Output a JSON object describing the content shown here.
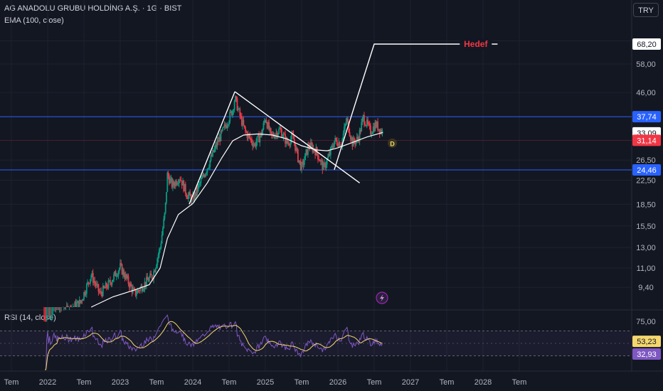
{
  "header": {
    "title": "AG ANADOLU GRUBU HOLDİNG A.Ş. · 1G · BIST",
    "ema_label": "EMA (100, close)",
    "currency_button": "TRY"
  },
  "rsi": {
    "label": "RSI (14, close)",
    "ticks": [
      "75,00"
    ],
    "value_labels": [
      {
        "text": "53,23",
        "value": 53.23,
        "color": "#f5d76e"
      },
      {
        "text": "32,93",
        "value": 32.93,
        "color": "#7e57c2"
      }
    ],
    "upper_band": 70,
    "lower_band": 30
  },
  "chart_data": {
    "type": "candlestick",
    "symbol": "AG ANADOLU GRUBU HOLDİNG A.Ş.",
    "interval": "1G",
    "exchange": "BIST",
    "scale": "log",
    "x_ticks": [
      "Tem",
      "2022",
      "Tem",
      "2023",
      "Tem",
      "2024",
      "Tem",
      "2025",
      "Tem",
      "2026",
      "Tem",
      "2027",
      "Tem",
      "2028",
      "Tem"
    ],
    "y_ticks": [
      "70,00",
      "58,00",
      "46,00",
      "26,50",
      "22,50",
      "18,50",
      "15,50",
      "13,00",
      "11,00",
      "9,40"
    ],
    "price_path": [
      [
        2021.95,
        7.0
      ],
      [
        2022.45,
        8.3
      ],
      [
        2022.6,
        10.4
      ],
      [
        2022.72,
        8.9
      ],
      [
        2022.85,
        9.7
      ],
      [
        2023.0,
        11.1
      ],
      [
        2023.2,
        8.9
      ],
      [
        2023.45,
        10.4
      ],
      [
        2023.55,
        13.0
      ],
      [
        2023.62,
        17.5
      ],
      [
        2023.65,
        23.5
      ],
      [
        2023.72,
        21.5
      ],
      [
        2023.82,
        23.2
      ],
      [
        2023.92,
        20.0
      ],
      [
        2024.0,
        19.2
      ],
      [
        2024.2,
        25.0
      ],
      [
        2024.35,
        31.0
      ],
      [
        2024.45,
        35.0
      ],
      [
        2024.55,
        40.0
      ],
      [
        2024.58,
        44.0
      ],
      [
        2024.65,
        38.0
      ],
      [
        2024.72,
        33.5
      ],
      [
        2024.85,
        30.0
      ],
      [
        2024.95,
        33.0
      ],
      [
        2025.0,
        37.5
      ],
      [
        2025.08,
        32.0
      ],
      [
        2025.2,
        34.0
      ],
      [
        2025.3,
        30.5
      ],
      [
        2025.38,
        32.0
      ],
      [
        2025.45,
        27.0
      ],
      [
        2025.5,
        24.8
      ],
      [
        2025.6,
        30.0
      ],
      [
        2025.7,
        28.5
      ],
      [
        2025.8,
        24.8
      ],
      [
        2025.88,
        27.5
      ],
      [
        2025.95,
        31.0
      ],
      [
        2026.05,
        30.5
      ],
      [
        2026.12,
        37.0
      ],
      [
        2026.2,
        30.5
      ],
      [
        2026.28,
        31.5
      ],
      [
        2026.35,
        37.5
      ],
      [
        2026.45,
        33.5
      ],
      [
        2026.52,
        35.5
      ],
      [
        2026.62,
        33.09
      ]
    ],
    "ema_path": [
      [
        2022.6,
        8.0
      ],
      [
        2022.9,
        8.7
      ],
      [
        2023.2,
        9.2
      ],
      [
        2023.4,
        9.6
      ],
      [
        2023.55,
        11.0
      ],
      [
        2023.65,
        14.0
      ],
      [
        2023.8,
        17.0
      ],
      [
        2024.0,
        18.6
      ],
      [
        2024.2,
        22.0
      ],
      [
        2024.4,
        27.0
      ],
      [
        2024.55,
        31.0
      ],
      [
        2024.7,
        32.5
      ],
      [
        2024.9,
        32.8
      ],
      [
        2025.1,
        32.5
      ],
      [
        2025.3,
        31.5
      ],
      [
        2025.5,
        29.8
      ],
      [
        2025.7,
        28.8
      ],
      [
        2025.85,
        28.6
      ],
      [
        2026.0,
        29.3
      ],
      [
        2026.2,
        30.6
      ],
      [
        2026.4,
        32.0
      ],
      [
        2026.62,
        33.2
      ]
    ],
    "trendlines": [
      {
        "name": "rally-line",
        "points": [
          [
            2023.95,
            18.5
          ],
          [
            2024.58,
            46.3
          ]
        ],
        "color": "#ffffff"
      },
      {
        "name": "downtrend-line",
        "points": [
          [
            2024.58,
            46.3
          ],
          [
            2026.3,
            22.0
          ]
        ],
        "color": "#ffffff"
      },
      {
        "name": "target-projection-line",
        "points": [
          [
            2025.95,
            24.5
          ],
          [
            2026.5,
            68.2
          ],
          [
            2028.2,
            68.2
          ]
        ],
        "color": "#ffffff"
      }
    ],
    "horizontal_levels": [
      {
        "name": "level-37-74",
        "value": 37.74,
        "color": "#2962ff"
      },
      {
        "name": "level-24-46",
        "value": 24.46,
        "color": "#2962ff"
      }
    ],
    "annotations": [
      {
        "text": "Hedef",
        "x": 2027.9,
        "y": 68.2,
        "color": "#f23645"
      },
      {
        "text": "D",
        "x": 2026.75,
        "y": 31.14,
        "color": "#f5d76e"
      }
    ],
    "price_labels": [
      {
        "text": "68,20",
        "value": 68.2,
        "bg": "#ffffff",
        "fg": "#131722"
      },
      {
        "text": "37,74",
        "value": 37.74,
        "bg": "#2962ff",
        "fg": "#ffffff"
      },
      {
        "text": "33,09",
        "value": 33.09,
        "bg": "#ffffff",
        "fg": "#131722"
      },
      {
        "text": "31,14",
        "value": 31.14,
        "bg": "#f23645",
        "fg": "#ffffff"
      },
      {
        "text": "24,46",
        "value": 24.46,
        "bg": "#2962ff",
        "fg": "#ffffff"
      }
    ],
    "colors": {
      "up": "#089981",
      "down": "#f23645",
      "ema": "#ffffff",
      "rsi": "#7e57c2",
      "rsi_ma": "#f5d76e",
      "grid": "#1e222d"
    }
  }
}
